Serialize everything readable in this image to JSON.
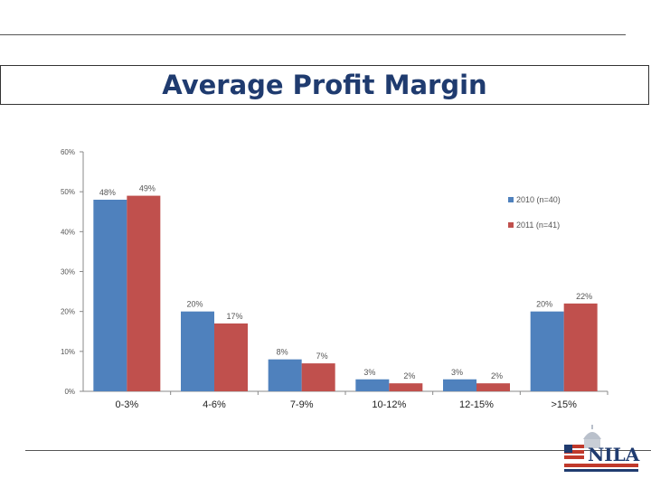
{
  "page": {
    "title": "Average Profit Margin"
  },
  "logo": {
    "word": "NILA"
  },
  "chart_data": {
    "type": "bar",
    "title": "",
    "xlabel": "",
    "ylabel": "",
    "categories": [
      "0-3%",
      "4-6%",
      "7-9%",
      "10-12%",
      "12-15%",
      ">15%"
    ],
    "series": [
      {
        "name": "2010 (n=40)",
        "color": "#4f81bd",
        "values": [
          48,
          20,
          8,
          3,
          3,
          20
        ]
      },
      {
        "name": "2011 (n=41)",
        "color": "#c0504d",
        "values": [
          49,
          17,
          7,
          2,
          2,
          22
        ]
      }
    ],
    "ylim": [
      0,
      60
    ],
    "yticks": [
      0,
      10,
      20,
      30,
      40,
      50,
      60
    ],
    "ytick_suffix": "%",
    "data_label_suffix": "%",
    "grid": false,
    "legend_position": "right"
  }
}
